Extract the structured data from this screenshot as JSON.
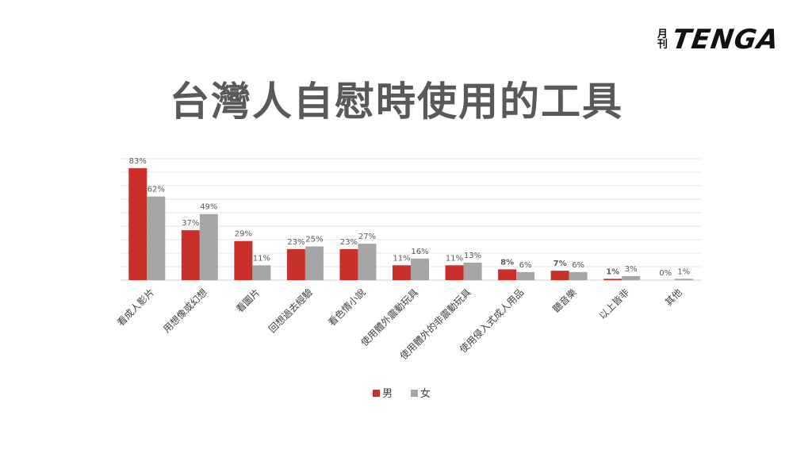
{
  "logo": {
    "mark": [
      "月",
      "刊"
    ],
    "word": "TENGA"
  },
  "title": "台灣人自慰時使用的工具",
  "chart_data": {
    "type": "bar",
    "categories": [
      "看成人影片",
      "用想像或幻想",
      "看圖片",
      "回想過去經驗",
      "看色情小說",
      "使用體外震動玩具",
      "使用體外的非震動玩具",
      "使用侵入式成人用品",
      "聽音樂",
      "以上皆非",
      "其他"
    ],
    "series": [
      {
        "name": "男",
        "color": "#c9302c",
        "values": [
          83,
          37,
          29,
          23,
          23,
          11,
          11,
          8,
          7,
          1,
          0
        ]
      },
      {
        "name": "女",
        "color": "#a6a6a6",
        "values": [
          62,
          49,
          11,
          25,
          27,
          16,
          13,
          6,
          6,
          3,
          1
        ]
      }
    ],
    "data_labels": [
      [
        "83%",
        "37%",
        "29%",
        "23%",
        "23%",
        "11%",
        "11%",
        "8%",
        "7%",
        "1%",
        "0%"
      ],
      [
        "62%",
        "49%",
        "11%",
        "25%",
        "27%",
        "16%",
        "13%",
        "6%",
        "6%",
        "3%",
        "1%"
      ]
    ],
    "bold_labels": [
      "8%",
      "7%",
      "1%"
    ],
    "ylim": [
      0,
      90
    ],
    "grid": true,
    "legend_position": "bottom"
  }
}
